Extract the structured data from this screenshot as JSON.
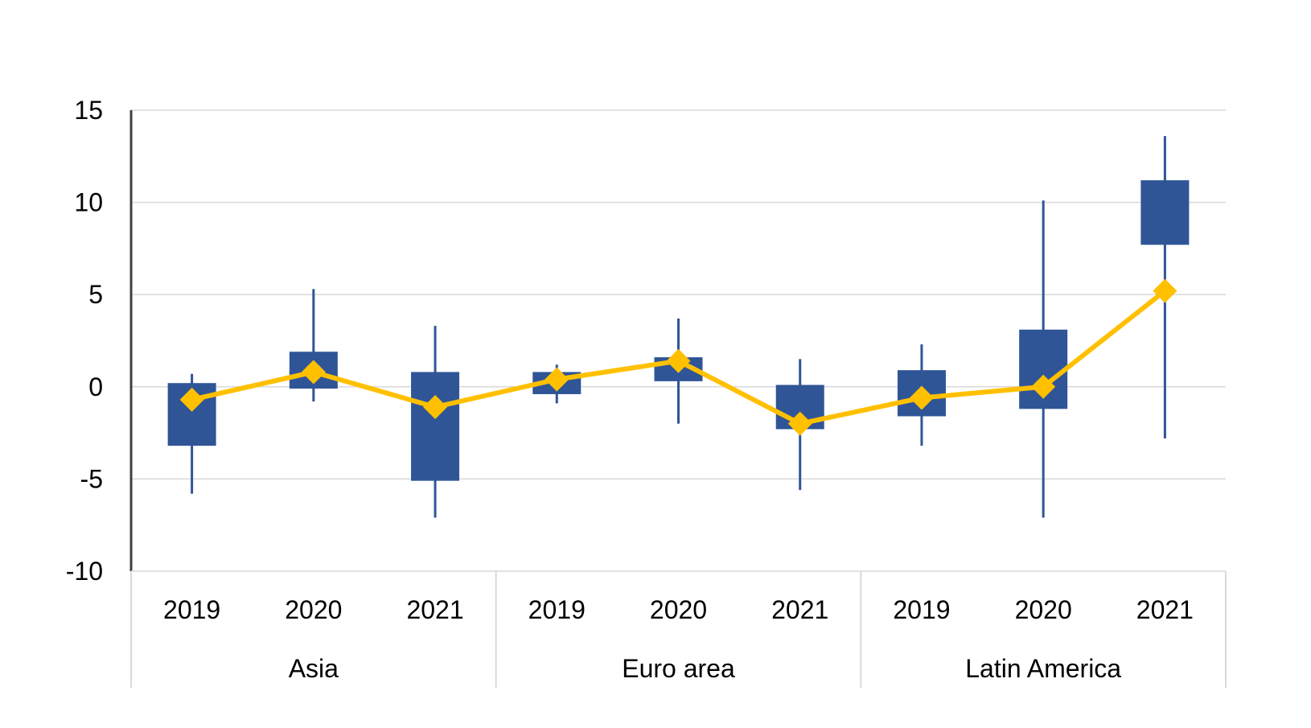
{
  "chart_data": {
    "type": "candlestick",
    "ylim": [
      -10,
      15
    ],
    "yticks": [
      "15",
      "10",
      "5",
      "0",
      "-5",
      "-10"
    ],
    "ytick_values": [
      15,
      10,
      5,
      0,
      -5,
      -10
    ],
    "grid": true,
    "legend": "none",
    "colors": {
      "box": "#2F5597",
      "whisker": "#2F5597",
      "line": "#FFC000",
      "grid": "#D9D9D9",
      "axis": "#404040"
    },
    "groups": [
      {
        "name": "Asia",
        "items": [
          {
            "year": "2019",
            "min": -5.8,
            "q1": -3.2,
            "q3": 0.2,
            "max": 0.7,
            "mean": -0.7
          },
          {
            "year": "2020",
            "min": -0.8,
            "q1": -0.1,
            "q3": 1.9,
            "max": 5.3,
            "mean": 0.8
          },
          {
            "year": "2021",
            "min": -7.1,
            "q1": -5.1,
            "q3": 0.8,
            "max": 3.3,
            "mean": -1.1
          }
        ]
      },
      {
        "name": "Euro area",
        "items": [
          {
            "year": "2019",
            "min": -0.9,
            "q1": -0.4,
            "q3": 0.8,
            "max": 1.2,
            "mean": 0.4
          },
          {
            "year": "2020",
            "min": -2.0,
            "q1": 0.3,
            "q3": 1.6,
            "max": 3.7,
            "mean": 1.4
          },
          {
            "year": "2021",
            "min": -5.6,
            "q1": -2.3,
            "q3": 0.1,
            "max": 1.5,
            "mean": -2.0
          }
        ]
      },
      {
        "name": "Latin America",
        "items": [
          {
            "year": "2019",
            "min": -3.2,
            "q1": -1.6,
            "q3": 0.9,
            "max": 2.3,
            "mean": -0.6
          },
          {
            "year": "2020",
            "min": -7.1,
            "q1": -1.2,
            "q3": 3.1,
            "max": 10.1,
            "mean": 0.0
          },
          {
            "year": "2021",
            "min": -2.8,
            "q1": 7.7,
            "q3": 11.2,
            "max": 13.6,
            "mean": 5.2
          }
        ]
      }
    ]
  }
}
